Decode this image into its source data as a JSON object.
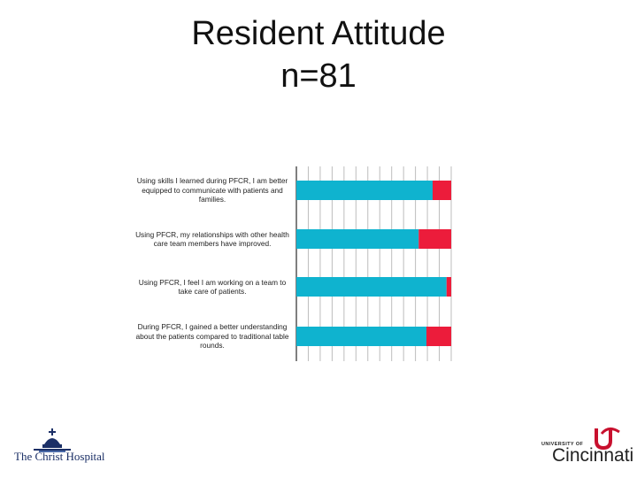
{
  "title_lines": [
    "Resident Attitude",
    "n=81"
  ],
  "colors": {
    "agree": "#0fb3cf",
    "disagree": "#ec1c3b",
    "grid": "#bdbdbd"
  },
  "chart_data": {
    "type": "bar",
    "orientation": "horizontal",
    "stacked": true,
    "normalized": true,
    "categories": [
      "Using skills I learned during PFCR, I am better equipped to communicate with patients and families.",
      "Using PFCR, my relationships with other health care team members have improved.",
      "Using PFCR, I feel I am working on a team to take care of patients.",
      "During PFCR, I gained a better understanding about the patients compared to traditional table rounds."
    ],
    "series": [
      {
        "values": [
          88,
          79,
          97,
          84
        ]
      },
      {
        "values": [
          12,
          21,
          3,
          16
        ]
      }
    ],
    "xlim": [
      0,
      100
    ],
    "grid": true,
    "legend": "none"
  },
  "logos": {
    "left": "The Christ Hospital",
    "right_small": "UNIVERSITY OF",
    "right_big": "Cincinnati"
  }
}
